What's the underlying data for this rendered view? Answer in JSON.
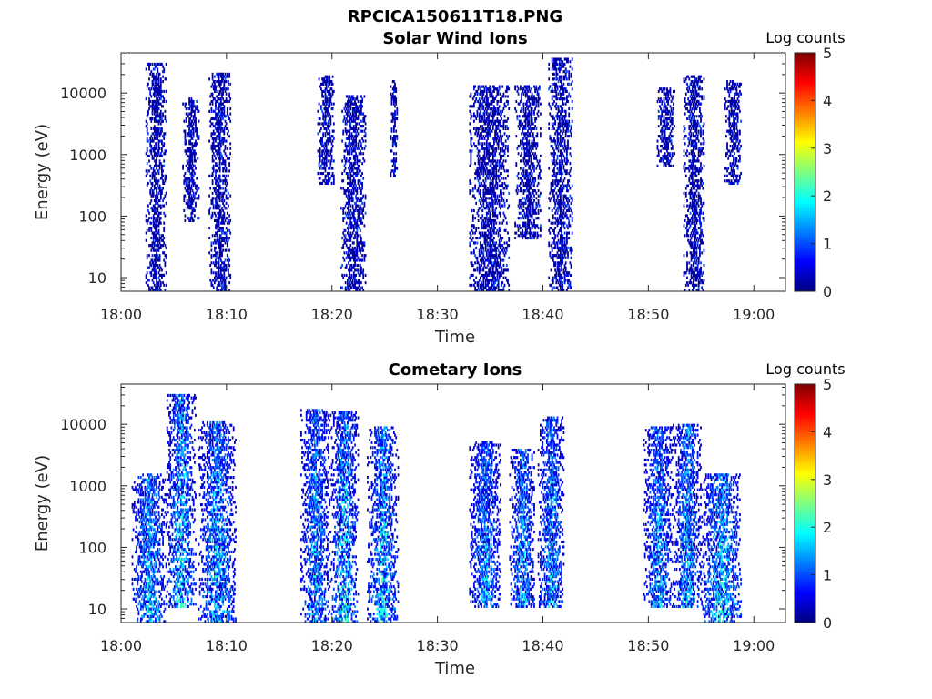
{
  "figure_title": "RPCICA150611T18.PNG",
  "colormap": [
    "#00007f",
    "#0000ff",
    "#007fff",
    "#00ffff",
    "#7fff7f",
    "#ffff00",
    "#ff7f00",
    "#ff0000",
    "#7f0000"
  ],
  "chart_data": [
    {
      "type": "heatmap",
      "title": "Solar Wind Ions",
      "xlabel": "Time",
      "ylabel": "Energy (eV)",
      "x_ticks": [
        "18:00",
        "18:10",
        "18:20",
        "18:30",
        "18:40",
        "18:50",
        "19:00"
      ],
      "x_range_minutes": [
        0,
        63
      ],
      "y_scale": "log",
      "y_ticks": [
        "10",
        "100",
        "1000",
        "10000"
      ],
      "y_range": [
        6,
        45000
      ],
      "colorbar": {
        "label": "Log counts",
        "range": [
          0,
          5
        ],
        "ticks": [
          "0",
          "1",
          "2",
          "3",
          "4",
          "5"
        ]
      },
      "bursts": [
        {
          "t_start": 2.3,
          "t_end": 4.3,
          "e_min": 6,
          "e_max": 30000,
          "max_log_counts": 1.0
        },
        {
          "t_start": 5.8,
          "t_end": 7.3,
          "e_min": 80,
          "e_max": 8000,
          "max_log_counts": 0.5
        },
        {
          "t_start": 8.3,
          "t_end": 10.3,
          "e_min": 6,
          "e_max": 20000,
          "max_log_counts": 1.0
        },
        {
          "t_start": 18.6,
          "t_end": 20.2,
          "e_min": 300,
          "e_max": 18000,
          "max_log_counts": 0.5
        },
        {
          "t_start": 20.8,
          "t_end": 23.2,
          "e_min": 6,
          "e_max": 9000,
          "max_log_counts": 1.0
        },
        {
          "t_start": 25.5,
          "t_end": 26.2,
          "e_min": 400,
          "e_max": 15000,
          "max_log_counts": 0.5
        },
        {
          "t_start": 33.0,
          "t_end": 36.8,
          "e_min": 6,
          "e_max": 13000,
          "max_log_counts": 1.0
        },
        {
          "t_start": 37.3,
          "t_end": 39.8,
          "e_min": 40,
          "e_max": 13000,
          "max_log_counts": 0.6
        },
        {
          "t_start": 40.5,
          "t_end": 42.8,
          "e_min": 6,
          "e_max": 35000,
          "max_log_counts": 1.0
        },
        {
          "t_start": 50.8,
          "t_end": 52.5,
          "e_min": 600,
          "e_max": 12000,
          "max_log_counts": 0.5
        },
        {
          "t_start": 53.3,
          "t_end": 55.3,
          "e_min": 6,
          "e_max": 18000,
          "max_log_counts": 1.0
        },
        {
          "t_start": 57.2,
          "t_end": 58.8,
          "e_min": 300,
          "e_max": 15000,
          "max_log_counts": 0.5
        }
      ]
    },
    {
      "type": "heatmap",
      "title": "Cometary Ions",
      "xlabel": "Time",
      "ylabel": "Energy (eV)",
      "x_ticks": [
        "18:00",
        "18:10",
        "18:20",
        "18:30",
        "18:40",
        "18:50",
        "19:00"
      ],
      "x_range_minutes": [
        0,
        63
      ],
      "y_scale": "log",
      "y_ticks": [
        "10",
        "100",
        "1000",
        "10000"
      ],
      "y_range": [
        6,
        45000
      ],
      "colorbar": {
        "label": "Log counts",
        "range": [
          0,
          5
        ],
        "ticks": [
          "0",
          "1",
          "2",
          "3",
          "4",
          "5"
        ]
      },
      "bursts": [
        {
          "t_start": 1.0,
          "t_end": 4.3,
          "e_min": 6,
          "e_max": 1500,
          "max_log_counts": 2.2
        },
        {
          "t_start": 4.3,
          "t_end": 7.0,
          "e_min": 10,
          "e_max": 30000,
          "max_log_counts": 2.4
        },
        {
          "t_start": 7.3,
          "t_end": 10.8,
          "e_min": 6,
          "e_max": 11000,
          "max_log_counts": 2.2
        },
        {
          "t_start": 17.0,
          "t_end": 19.8,
          "e_min": 6,
          "e_max": 17000,
          "max_log_counts": 2.0
        },
        {
          "t_start": 19.8,
          "t_end": 22.5,
          "e_min": 6,
          "e_max": 16000,
          "max_log_counts": 2.4
        },
        {
          "t_start": 23.3,
          "t_end": 26.3,
          "e_min": 6,
          "e_max": 9000,
          "max_log_counts": 2.3
        },
        {
          "t_start": 33.0,
          "t_end": 36.0,
          "e_min": 10,
          "e_max": 5000,
          "max_log_counts": 2.0
        },
        {
          "t_start": 36.8,
          "t_end": 39.2,
          "e_min": 10,
          "e_max": 4000,
          "max_log_counts": 2.1
        },
        {
          "t_start": 39.5,
          "t_end": 42.0,
          "e_min": 10,
          "e_max": 13000,
          "max_log_counts": 2.2
        },
        {
          "t_start": 49.5,
          "t_end": 52.3,
          "e_min": 10,
          "e_max": 9000,
          "max_log_counts": 2.0
        },
        {
          "t_start": 52.3,
          "t_end": 55.0,
          "e_min": 10,
          "e_max": 10000,
          "max_log_counts": 2.1
        },
        {
          "t_start": 55.0,
          "t_end": 58.8,
          "e_min": 6,
          "e_max": 1500,
          "max_log_counts": 2.5
        }
      ]
    }
  ]
}
